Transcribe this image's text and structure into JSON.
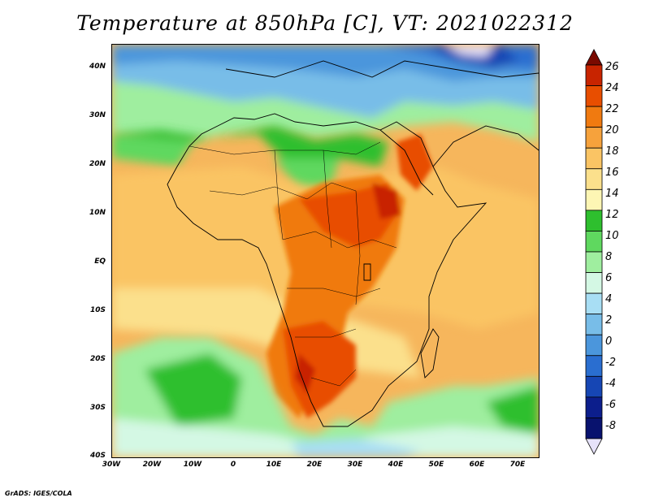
{
  "title": "Temperature at 850hPa [C], VT: 2021022312",
  "credit": "GrADS: IGES/COLA",
  "lat_labels": [
    "40N",
    "30N",
    "20N",
    "10N",
    "EQ",
    "10S",
    "20S",
    "30S",
    "40S"
  ],
  "lon_labels": [
    "30W",
    "20W",
    "10W",
    "0",
    "10E",
    "20E",
    "30E",
    "40E",
    "50E",
    "60E",
    "70E"
  ],
  "colorbar": {
    "levels": [
      "26",
      "24",
      "22",
      "20",
      "18",
      "16",
      "14",
      "12",
      "10",
      "8",
      "6",
      "4",
      "2",
      "0",
      "-2",
      "-4",
      "-6",
      "-8"
    ],
    "colors": [
      "#7a0a00",
      "#c82400",
      "#e84e00",
      "#f07a10",
      "#f6a23c",
      "#fac464",
      "#fbe08c",
      "#fdf6b4",
      "#2ebf2e",
      "#5fd85f",
      "#9fee9f",
      "#d4f8e4",
      "#a8def4",
      "#78bde8",
      "#4b96dc",
      "#2a6ed0",
      "#1646b4",
      "#0c1e8c",
      "#08126e",
      "#e6e2fa"
    ]
  },
  "map": {
    "lat_range": [
      -40,
      45
    ],
    "lon_range": [
      -30,
      76
    ]
  }
}
